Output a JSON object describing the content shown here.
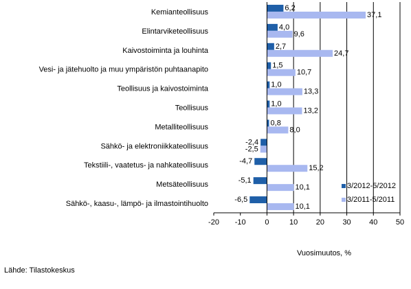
{
  "chart_data": {
    "type": "bar",
    "orientation": "horizontal",
    "categories": [
      "Kemianteollisuus",
      "Elintarviketeollisuus",
      "Kaivostoiminta ja louhinta",
      "Vesi- ja jätehuolto ja muu ympäristön puhtaanapito",
      "Teollisuus ja kaivostoiminta",
      "Teollisuus",
      "Metalliteollisuus",
      "Sähkö- ja elektroniikkateollisuus",
      "Tekstiili-, vaatetus- ja nahkateollisuus",
      "Metsäteollisuus",
      "Sähkö-, kaasu-, lämpö- ja ilmastointihuolto"
    ],
    "series": [
      {
        "name": "3/2012-5/2012",
        "color": "#1f5fa8",
        "values": [
          6.2,
          4.0,
          2.7,
          1.5,
          1.0,
          1.0,
          0.8,
          -2.4,
          -4.7,
          -5.1,
          -6.5
        ],
        "labels": [
          "6,2",
          "4,0",
          "2,7",
          "1,5",
          "1,0",
          "1,0",
          "0,8",
          "-2,4",
          "-4,7",
          "-5,1",
          "-6,5"
        ]
      },
      {
        "name": "3/2011-5/2011",
        "color": "#a8b8f0",
        "values": [
          37.1,
          9.6,
          24.7,
          10.7,
          13.3,
          13.2,
          8.0,
          -2.5,
          15.2,
          10.1,
          10.1
        ],
        "labels": [
          "37,1",
          "9,6",
          "24,7",
          "10,7",
          "13,3",
          "13,2",
          "8,0",
          "-2,5",
          "15,2",
          "10,1",
          "10,1"
        ]
      }
    ],
    "xlim": [
      -20,
      50
    ],
    "xticks": [
      -20,
      -10,
      0,
      10,
      20,
      30,
      40,
      50
    ],
    "xlabel": "Vuosimuutos, %",
    "gridlines": "vertical",
    "legend_position": "bottom-right"
  },
  "source": "Lähde: Tilastokeskus"
}
